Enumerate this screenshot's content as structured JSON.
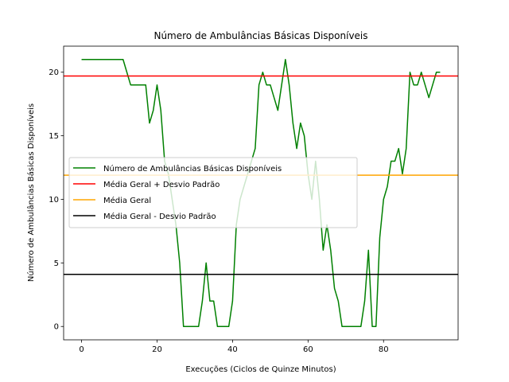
{
  "chart_data": {
    "type": "line",
    "title": "Número de Ambulâncias Básicas Disponíveis",
    "xlabel": "Execuções (Ciclos de Quinze Minutos)",
    "ylabel": "Número de Ambulâncias Básicas Disponíveis",
    "xlim": [
      -4.75,
      99.75
    ],
    "ylim": [
      -1.05,
      22.05
    ],
    "x_ticks": [
      0,
      20,
      40,
      60,
      80
    ],
    "y_ticks": [
      0,
      5,
      10,
      15,
      20
    ],
    "grid": false,
    "legend_position": "center-left",
    "series": [
      {
        "name": "Número de Ambulâncias Básicas Disponíveis",
        "color": "#008000",
        "x": [
          0,
          1,
          2,
          3,
          4,
          5,
          6,
          7,
          8,
          9,
          10,
          11,
          12,
          13,
          14,
          15,
          16,
          17,
          18,
          19,
          20,
          21,
          22,
          23,
          24,
          25,
          26,
          27,
          28,
          29,
          30,
          31,
          32,
          33,
          34,
          35,
          36,
          37,
          38,
          39,
          40,
          41,
          42,
          43,
          44,
          45,
          46,
          47,
          48,
          49,
          50,
          51,
          52,
          53,
          54,
          55,
          56,
          57,
          58,
          59,
          60,
          61,
          62,
          63,
          64,
          65,
          66,
          67,
          68,
          69,
          70,
          71,
          72,
          73,
          74,
          75,
          76,
          77,
          78,
          79,
          80,
          81,
          82,
          83,
          84,
          85,
          86,
          87,
          88,
          89,
          90,
          91,
          92,
          93,
          94,
          95
        ],
        "values": [
          21,
          21,
          21,
          21,
          21,
          21,
          21,
          21,
          21,
          21,
          21,
          21,
          20,
          19,
          19,
          19,
          19,
          19,
          16,
          17,
          19,
          17,
          13,
          12,
          10,
          8,
          5,
          0,
          0,
          0,
          0,
          0,
          2,
          5,
          2,
          2,
          0,
          0,
          0,
          0,
          2,
          8,
          10,
          11,
          12,
          13,
          14,
          19,
          20,
          19,
          19,
          18,
          17,
          19,
          21,
          19,
          16,
          14,
          16,
          15,
          12,
          10,
          13,
          10,
          6,
          8,
          6,
          3,
          2,
          0,
          0,
          0,
          0,
          0,
          0,
          2,
          6,
          0,
          0,
          7,
          10,
          11,
          13,
          13,
          14,
          12,
          14,
          20,
          19,
          19,
          20,
          19,
          18,
          19,
          20,
          20
        ]
      },
      {
        "name": "Média Geral + Desvio Padrão",
        "color": "#ff0000",
        "constant": 19.7
      },
      {
        "name": "Média Geral",
        "color": "#ffa500",
        "constant": 11.9
      },
      {
        "name": "Média Geral - Desvio Padrão",
        "color": "#000000",
        "constant": 4.1
      }
    ]
  }
}
